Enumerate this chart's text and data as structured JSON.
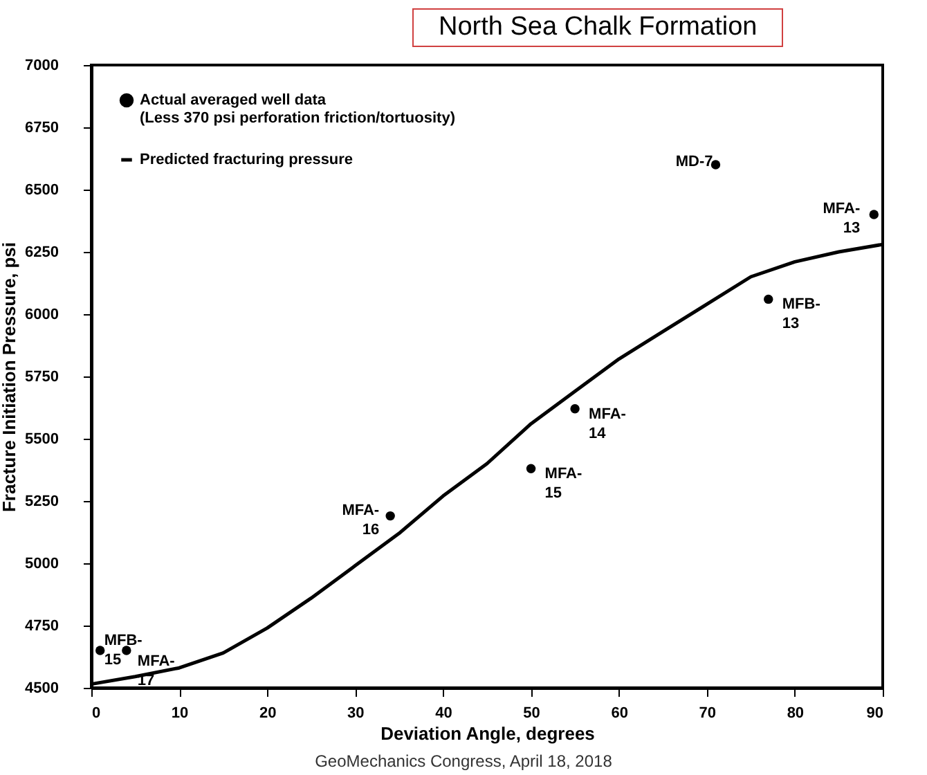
{
  "chart_data": {
    "type": "scatter",
    "title": "North Sea Chalk Formation",
    "xlabel": "Deviation Angle, degrees",
    "ylabel": "Fracture Initiation Pressure, psi",
    "xlim": [
      0,
      90
    ],
    "xticks": [
      0,
      10,
      20,
      30,
      40,
      50,
      60,
      70,
      80,
      90
    ],
    "ylim": [
      4500,
      7000
    ],
    "yticks": [
      4500,
      4750,
      5000,
      5250,
      5500,
      5750,
      6000,
      6250,
      6500,
      6750,
      7000
    ],
    "grid": false,
    "legend": "top left",
    "series": [
      {
        "name": "Actual averaged well data\n(Less 370 psi perforation friction/tortuosity)",
        "marker": "circle",
        "color": "#000000",
        "x": [
          1,
          4,
          34,
          50,
          55,
          71,
          77,
          89
        ],
        "values": [
          4650,
          4650,
          5190,
          5380,
          5620,
          6600,
          6060,
          6400
        ],
        "value_labels": [
          "MFB-\n15",
          "MFA-\n17",
          "MFA-\n16",
          "MFA-\n15",
          "MFA-\n14",
          "MD-7",
          "MFB-\n13",
          "MFA-\n13"
        ]
      },
      {
        "name": "Predicted fracturing pressure",
        "type": "line",
        "color": "#000000",
        "line_style": "solid",
        "x": [
          0,
          5,
          10,
          15,
          20,
          25,
          30,
          35,
          40,
          45,
          50,
          55,
          60,
          65,
          70,
          75,
          80,
          85,
          90
        ],
        "values": [
          4515,
          4545,
          4580,
          4640,
          4740,
          4860,
          4990,
          5120,
          5270,
          5400,
          5560,
          5690,
          5820,
          5930,
          6040,
          6150,
          6210,
          6250,
          6280
        ]
      }
    ],
    "annotations": [
      "GeoMechanics Congress, April 18, 2018"
    ]
  }
}
